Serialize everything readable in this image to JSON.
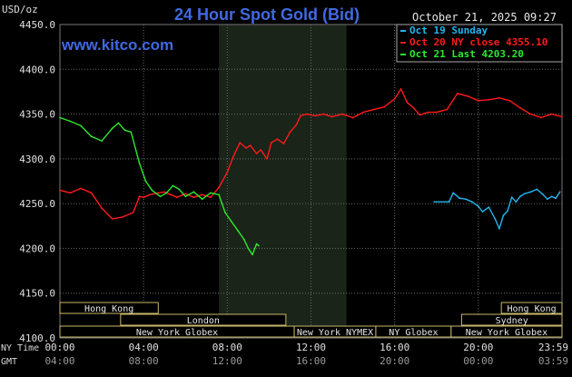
{
  "header": {
    "title": "24 Hour Spot Gold (Bid)",
    "unit": "USD/oz",
    "date": "October 21, 2025 09:27",
    "watermark": "www.kitco.com"
  },
  "legend": [
    {
      "label": "Oct 19 Sunday",
      "color": "#22b6ee"
    },
    {
      "label": "Oct 20 NY close 4355.10",
      "color": "#ff1a1a"
    },
    {
      "label": "Oct 21 Last 4203.20",
      "color": "#2ee82e"
    }
  ],
  "market_sessions": [
    {
      "label": "Hong Kong",
      "row": 0,
      "start": 0,
      "end": 4.7
    },
    {
      "label": "London",
      "row": 1,
      "start": 2.9,
      "end": 10.8
    },
    {
      "label": "New York Globex",
      "row": 2,
      "start": 0,
      "end": 11.2
    },
    {
      "label": "New York NYMEX",
      "row": 2,
      "start": 11.2,
      "end": 15.1
    },
    {
      "label": "NY Globex",
      "row": 2,
      "start": 15.1,
      "end": 18.7
    },
    {
      "label": "Hong Kong",
      "row": 0,
      "start": 21.1,
      "end": 24
    },
    {
      "label": "Sydney",
      "row": 1,
      "start": 19.2,
      "end": 24
    },
    {
      "label": "New York Globex",
      "row": 2,
      "start": 18.7,
      "end": 24
    }
  ],
  "time_rows": [
    {
      "label": "NY Time",
      "ticks": [
        "00:00",
        "04:00",
        "08:00",
        "12:00",
        "16:00",
        "20:00",
        "23:59"
      ]
    },
    {
      "label": "GMT",
      "ticks": [
        "04:00",
        "08:00",
        "12:00",
        "16:00",
        "20:00",
        "00:00",
        "03:59"
      ]
    }
  ],
  "chart_data": {
    "type": "line",
    "title": "24 Hour Spot Gold (Bid)",
    "ylabel": "USD/oz",
    "xlabel": "NY Time",
    "ylim": [
      4100,
      4450
    ],
    "xlim": [
      0,
      24
    ],
    "y_ticks": [
      "4450.0",
      "4400.0",
      "4350.0",
      "4300.0",
      "4250.0",
      "4200.0",
      "4150.0",
      "4100.0"
    ],
    "x_ticks": [
      "00:00",
      "04:00",
      "08:00",
      "12:00",
      "16:00",
      "20:00",
      "23:59"
    ],
    "grid": true,
    "legend_position": "top-right",
    "shaded_region": {
      "x_start": 7.6,
      "x_end": 13.7
    },
    "series": [
      {
        "name": "Oct 19 Sunday",
        "color": "#22b6ee",
        "x": [
          17.9,
          18.6,
          18.8,
          19.1,
          19.4,
          19.7,
          20.0,
          20.2,
          20.5,
          20.8,
          21.0,
          21.2,
          21.4,
          21.6,
          21.8,
          22.0,
          22.2,
          22.5,
          22.8,
          23.1,
          23.3,
          23.5,
          23.7,
          23.9
        ],
        "values": [
          4252,
          4252,
          4262,
          4256,
          4255,
          4252,
          4247,
          4241,
          4246,
          4233,
          4222,
          4237,
          4242,
          4257,
          4252,
          4258,
          4261,
          4263,
          4266,
          4260,
          4255,
          4258,
          4256,
          4263
        ]
      },
      {
        "name": "Oct 20 NY close 4355.10",
        "color": "#ff1a1a",
        "x": [
          0.0,
          0.5,
          1.0,
          1.5,
          2.0,
          2.5,
          3.0,
          3.5,
          3.8,
          4.0,
          4.3,
          4.7,
          5.0,
          5.3,
          5.6,
          6.0,
          6.4,
          6.8,
          7.2,
          7.6,
          8.0,
          8.3,
          8.6,
          8.9,
          9.1,
          9.4,
          9.6,
          9.9,
          10.1,
          10.4,
          10.7,
          11.0,
          11.3,
          11.5,
          11.8,
          12.2,
          12.6,
          13.0,
          13.5,
          14.0,
          14.5,
          15.0,
          15.5,
          16.0,
          16.3,
          16.6,
          16.9,
          17.2,
          17.6,
          18.0,
          18.5,
          19.0,
          19.5,
          20.0,
          20.5,
          21.0,
          21.5,
          22.0,
          22.5,
          23.0,
          23.5,
          23.99
        ],
        "values": [
          4265,
          4262,
          4267,
          4262,
          4245,
          4233,
          4235,
          4240,
          4258,
          4257,
          4260,
          4262,
          4263,
          4260,
          4257,
          4261,
          4257,
          4260,
          4257,
          4268,
          4285,
          4303,
          4318,
          4312,
          4315,
          4306,
          4310,
          4300,
          4318,
          4322,
          4317,
          4330,
          4338,
          4348,
          4350,
          4348,
          4350,
          4347,
          4350,
          4346,
          4352,
          4355,
          4358,
          4367,
          4378,
          4363,
          4357,
          4349,
          4352,
          4352,
          4355,
          4373,
          4370,
          4365,
          4366,
          4368,
          4365,
          4357,
          4350,
          4346,
          4350,
          4347
        ]
      },
      {
        "name": "Oct 21 Last 4203.20",
        "color": "#2ee82e",
        "x": [
          0.0,
          0.5,
          1.0,
          1.5,
          2.0,
          2.5,
          2.8,
          3.1,
          3.4,
          3.8,
          4.1,
          4.4,
          4.8,
          5.1,
          5.4,
          5.7,
          6.0,
          6.4,
          6.8,
          7.2,
          7.6,
          7.9,
          8.2,
          8.5,
          8.8,
          9.0,
          9.2,
          9.4,
          9.5
        ],
        "values": [
          4346,
          4342,
          4337,
          4325,
          4320,
          4334,
          4340,
          4332,
          4330,
          4295,
          4275,
          4265,
          4258,
          4262,
          4270,
          4266,
          4258,
          4263,
          4255,
          4262,
          4260,
          4240,
          4230,
          4220,
          4210,
          4200,
          4193,
          4205,
          4203
        ]
      }
    ]
  }
}
